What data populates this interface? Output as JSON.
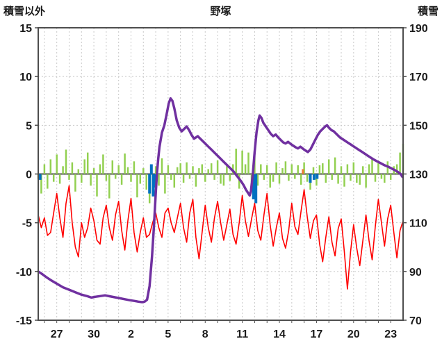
{
  "header": {
    "left_label": "積雪以外",
    "title": "野塚",
    "right_label": "積雪"
  },
  "chart_data": {
    "type": "line",
    "title": "野塚",
    "left_axis": {
      "label": "積雪以外",
      "min": -15,
      "max": 15,
      "ticks": [
        15,
        10,
        5,
        0,
        -5,
        -10,
        -15
      ]
    },
    "right_axis": {
      "label": "積雪",
      "min": 70,
      "max": 190,
      "ticks": [
        190,
        170,
        150,
        130,
        110,
        90,
        70
      ]
    },
    "x_axis": {
      "domain": [
        0,
        29.5
      ],
      "grid_step": 1,
      "grid_offset": 0.5,
      "labels": [
        "27",
        "30",
        "2",
        "5",
        "8",
        "11",
        "14",
        "17",
        "20",
        "23"
      ],
      "label_positions": [
        1.5,
        4.5,
        7.5,
        10.5,
        13.5,
        16.5,
        19.5,
        22.5,
        25.5,
        28.5
      ]
    },
    "grid": true,
    "legend": "none",
    "colors": {
      "red_line": "#FF0000",
      "green_bars": "#92D050",
      "blue_bars": "#0070C0",
      "orange_bars": "#ED7D31",
      "purple_line": "#7030A0"
    },
    "series": [
      {
        "name": "green_bars",
        "type": "bar",
        "axis": "left",
        "color": "#92D050",
        "width": 2.5,
        "x0": 0,
        "dx": 0.25,
        "values": [
          -0.5,
          -2.0,
          1.0,
          -1.5,
          1.5,
          -0.8,
          2.0,
          -1.0,
          0.8,
          2.5,
          -0.6,
          1.2,
          -1.8,
          0.5,
          -0.9,
          1.5,
          2.2,
          -1.2,
          0.6,
          -2.3,
          1.0,
          2.0,
          -0.7,
          -2.5,
          1.4,
          -0.5,
          0.9,
          -1.1,
          2.1,
          0.7,
          -0.8,
          1.3,
          -2.4,
          -1.0,
          0.6,
          -1.6,
          -3.0,
          -2.2,
          0.8,
          -1.2,
          1.6,
          -2.0,
          0.9,
          -0.6,
          -1.4,
          0.7,
          1.1,
          -0.9,
          1.2,
          -0.5,
          0.8,
          -1.3,
          0.6,
          1.0,
          -0.8,
          0.5,
          1.1,
          -0.6,
          1.4,
          -1.0,
          -1.2,
          0.8,
          -0.7,
          1.0,
          2.6,
          -1.5,
          2.4,
          1.0,
          2.2,
          -0.8,
          1.8,
          -1.2,
          1.0,
          -0.6,
          0.9,
          -1.4,
          -0.8,
          1.2,
          -1.0,
          0.6,
          1.3,
          -0.7,
          1.0,
          -0.5,
          0.9,
          -1.1,
          1.2,
          -0.8,
          -1.6,
          0.7,
          -1.2,
          0.9,
          1.1,
          -0.9,
          1.5,
          -0.6,
          1.7,
          -1.0,
          0.8,
          -1.3,
          1.0,
          -0.7,
          1.2,
          -0.9,
          -1.1,
          0.8,
          -1.4,
          1.0,
          1.6,
          -0.8,
          1.1,
          -0.5,
          -0.9,
          1.3,
          -0.6,
          0.8,
          1.0,
          2.2,
          3.1
        ]
      },
      {
        "name": "blue_bars",
        "type": "bar",
        "axis": "left",
        "color": "#0070C0",
        "width": 4,
        "points": [
          [
            0.15,
            -0.6
          ],
          [
            9.0,
            -2.0
          ],
          [
            9.15,
            1.0
          ],
          [
            9.3,
            -2.3
          ],
          [
            9.5,
            -1.4
          ],
          [
            17.4,
            -2.6
          ],
          [
            17.6,
            -3.0
          ],
          [
            22.0,
            -0.9
          ],
          [
            22.3,
            -0.6
          ],
          [
            22.55,
            -0.5
          ]
        ]
      },
      {
        "name": "orange_bars",
        "type": "bar",
        "axis": "left",
        "color": "#ED7D31",
        "width": 3,
        "points": [
          [
            21.4,
            0.5
          ]
        ]
      },
      {
        "name": "red_line",
        "type": "line",
        "axis": "left",
        "color": "#FF0000",
        "width": 1.6,
        "x0": 0,
        "dx": 0.25,
        "values": [
          -4.2,
          -5.5,
          -4.5,
          -6.3,
          -6.0,
          -4.0,
          -2.0,
          -4.5,
          -6.5,
          -3.0,
          -1.2,
          -5.0,
          -7.5,
          -8.5,
          -5.0,
          -6.5,
          -5.5,
          -3.5,
          -4.8,
          -6.8,
          -7.2,
          -4.5,
          -3.2,
          -5.5,
          -6.8,
          -4.2,
          -2.8,
          -5.8,
          -7.8,
          -4.8,
          -2.5,
          -6.0,
          -8.0,
          -6.0,
          -4.5,
          -6.5,
          -6.2,
          -5.0,
          -4.0,
          -5.5,
          -6.5,
          -4.0,
          -3.5,
          -5.0,
          -6.0,
          -4.5,
          -3.0,
          -5.5,
          -7.0,
          -4.0,
          -2.6,
          -6.5,
          -8.7,
          -6.0,
          -3.2,
          -5.5,
          -7.0,
          -4.5,
          -2.8,
          -5.0,
          -6.8,
          -5.2,
          -3.6,
          -6.2,
          -7.2,
          -5.0,
          -2.2,
          -4.8,
          -6.4,
          -4.6,
          -3.0,
          -5.8,
          -6.8,
          -4.2,
          -2.0,
          -5.2,
          -7.4,
          -5.5,
          -4.0,
          -6.6,
          -7.6,
          -5.8,
          -3.0,
          -5.4,
          -6.2,
          -3.8,
          -1.6,
          -4.4,
          -6.6,
          -4.8,
          -4.2,
          -7.2,
          -9.0,
          -6.5,
          -4.4,
          -7.0,
          -8.4,
          -5.6,
          -4.6,
          -8.0,
          -11.8,
          -8.0,
          -5.2,
          -7.6,
          -9.4,
          -6.8,
          -4.2,
          -6.9,
          -8.8,
          -5.4,
          -2.6,
          -5.0,
          -7.4,
          -4.6,
          -3.2,
          -6.0,
          -8.6,
          -5.8,
          -4.8
        ]
      },
      {
        "name": "purple_line",
        "type": "line",
        "axis": "right",
        "color": "#7030A0",
        "width": 3.5,
        "points": [
          [
            0,
            90
          ],
          [
            0.3,
            89
          ],
          [
            0.7,
            87.5
          ],
          [
            1,
            86.5
          ],
          [
            1.5,
            85
          ],
          [
            2,
            83.5
          ],
          [
            2.5,
            82.5
          ],
          [
            3,
            81.5
          ],
          [
            3.5,
            80.5
          ],
          [
            4,
            79.8
          ],
          [
            4.3,
            79.3
          ],
          [
            4.6,
            79.6
          ],
          [
            5,
            79.9
          ],
          [
            5.4,
            80.2
          ],
          [
            5.8,
            79.8
          ],
          [
            6.2,
            79.4
          ],
          [
            6.6,
            79
          ],
          [
            7,
            78.6
          ],
          [
            7.4,
            78.2
          ],
          [
            7.8,
            77.9
          ],
          [
            8.1,
            77.6
          ],
          [
            8.4,
            77.4
          ],
          [
            8.6,
            77.6
          ],
          [
            8.8,
            78.4
          ],
          [
            9,
            84
          ],
          [
            9.2,
            96
          ],
          [
            9.35,
            108
          ],
          [
            9.5,
            122
          ],
          [
            9.6,
            130
          ],
          [
            9.7,
            136
          ],
          [
            9.8,
            141
          ],
          [
            10,
            147
          ],
          [
            10.2,
            150
          ],
          [
            10.4,
            155
          ],
          [
            10.55,
            159
          ],
          [
            10.7,
            161
          ],
          [
            10.85,
            160
          ],
          [
            11,
            157
          ],
          [
            11.2,
            152
          ],
          [
            11.4,
            149
          ],
          [
            11.6,
            147.5
          ],
          [
            11.8,
            148.5
          ],
          [
            12,
            149.5
          ],
          [
            12.2,
            148
          ],
          [
            12.4,
            146
          ],
          [
            12.6,
            144.5
          ],
          [
            12.9,
            145.5
          ],
          [
            13.1,
            144.5
          ],
          [
            13.4,
            143
          ],
          [
            13.7,
            141.5
          ],
          [
            14,
            140
          ],
          [
            14.3,
            138.5
          ],
          [
            14.6,
            137
          ],
          [
            15,
            135
          ],
          [
            15.4,
            133
          ],
          [
            15.8,
            131
          ],
          [
            16.1,
            129
          ],
          [
            16.4,
            127
          ],
          [
            16.6,
            125.5
          ],
          [
            16.8,
            123.5
          ],
          [
            17,
            122
          ],
          [
            17.1,
            121.2
          ],
          [
            17.2,
            123
          ],
          [
            17.35,
            130
          ],
          [
            17.5,
            139
          ],
          [
            17.65,
            147
          ],
          [
            17.8,
            152
          ],
          [
            17.9,
            154
          ],
          [
            18.05,
            153
          ],
          [
            18.2,
            151
          ],
          [
            18.4,
            149.5
          ],
          [
            18.6,
            148
          ],
          [
            18.8,
            146.5
          ],
          [
            19,
            145.5
          ],
          [
            19.2,
            146.2
          ],
          [
            19.4,
            145
          ],
          [
            19.6,
            144
          ],
          [
            19.8,
            143
          ],
          [
            20,
            142.5
          ],
          [
            20.2,
            143.2
          ],
          [
            20.5,
            142
          ],
          [
            20.8,
            141
          ],
          [
            21,
            140.5
          ],
          [
            21.2,
            141.2
          ],
          [
            21.5,
            140
          ],
          [
            21.8,
            139
          ],
          [
            22,
            140
          ],
          [
            22.2,
            142
          ],
          [
            22.4,
            144
          ],
          [
            22.6,
            146
          ],
          [
            22.8,
            147.5
          ],
          [
            23,
            148.5
          ],
          [
            23.2,
            149.5
          ],
          [
            23.35,
            150
          ],
          [
            23.5,
            149
          ],
          [
            23.7,
            148
          ],
          [
            23.9,
            147.5
          ],
          [
            24.1,
            146.5
          ],
          [
            24.4,
            145
          ],
          [
            24.7,
            144
          ],
          [
            25,
            143
          ],
          [
            25.3,
            142
          ],
          [
            25.6,
            141
          ],
          [
            25.9,
            140
          ],
          [
            26.2,
            139
          ],
          [
            26.5,
            138
          ],
          [
            26.8,
            137
          ],
          [
            27.1,
            136
          ],
          [
            27.4,
            135.2
          ],
          [
            27.7,
            134.4
          ],
          [
            28,
            133.6
          ],
          [
            28.3,
            133
          ],
          [
            28.6,
            132.2
          ],
          [
            28.9,
            131.4
          ],
          [
            29.1,
            130.8
          ],
          [
            29.3,
            130
          ],
          [
            29.45,
            128.8
          ]
        ]
      }
    ]
  }
}
